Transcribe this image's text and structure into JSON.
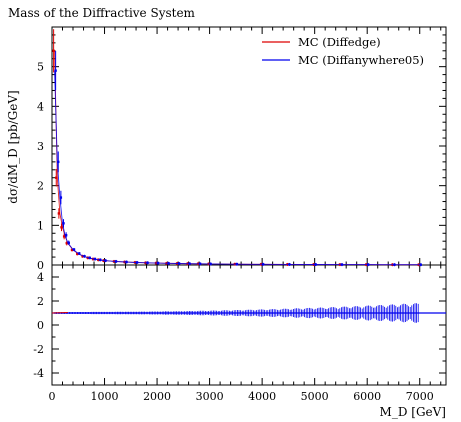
{
  "chart_data": {
    "type": "scatter",
    "title": "Mass of the Diffractive System",
    "xlabel": "M_D [GeV]",
    "ylabel": "dσ/dM_D [pb/GeV]",
    "xlim": [
      0,
      7500
    ],
    "ylim": [
      0,
      6
    ],
    "ratio_ylim": [
      -5,
      5
    ],
    "legend_position": "top-right",
    "xticks": [
      "0",
      "1000",
      "2000",
      "3000",
      "4000",
      "5000",
      "6000",
      "7000"
    ],
    "yticks": [
      "0",
      "1",
      "2",
      "3",
      "4",
      "5"
    ],
    "ratio_yticks": [
      "-4",
      "-2",
      "0",
      "2",
      "4"
    ],
    "series": [
      {
        "name": "MC (Diffedge)",
        "color": "#dd0000",
        "x": [
          50,
          100,
          150,
          200,
          250,
          300,
          400,
          500,
          600,
          700,
          800,
          900,
          1000,
          1200,
          1400,
          1600,
          1800,
          2000,
          2200,
          2400,
          2600,
          2800,
          3000,
          3500,
          4000,
          4500,
          5000,
          5500,
          6000,
          6500,
          7000
        ],
        "y": [
          5.4,
          2.2,
          1.3,
          0.95,
          0.72,
          0.55,
          0.38,
          0.28,
          0.22,
          0.18,
          0.15,
          0.13,
          0.11,
          0.09,
          0.075,
          0.065,
          0.055,
          0.048,
          0.042,
          0.037,
          0.033,
          0.03,
          0.027,
          0.021,
          0.017,
          0.014,
          0.012,
          0.01,
          0.009,
          0.008,
          0.007
        ]
      },
      {
        "name": "MC (Diffanywhere05)",
        "color": "#0000ee",
        "x": [
          50,
          100,
          150,
          200,
          250,
          300,
          400,
          500,
          600,
          700,
          800,
          900,
          1000,
          1200,
          1400,
          1600,
          1800,
          2000,
          2200,
          2400,
          2600,
          2800,
          3000,
          3500,
          4000,
          4500,
          5000,
          5500,
          6000,
          6500,
          7000
        ],
        "y": [
          4.9,
          2.6,
          1.7,
          1.05,
          0.75,
          0.56,
          0.39,
          0.29,
          0.22,
          0.18,
          0.15,
          0.13,
          0.11,
          0.09,
          0.076,
          0.064,
          0.056,
          0.048,
          0.042,
          0.037,
          0.033,
          0.03,
          0.027,
          0.021,
          0.017,
          0.014,
          0.012,
          0.01,
          0.009,
          0.008,
          0.007
        ]
      }
    ]
  }
}
